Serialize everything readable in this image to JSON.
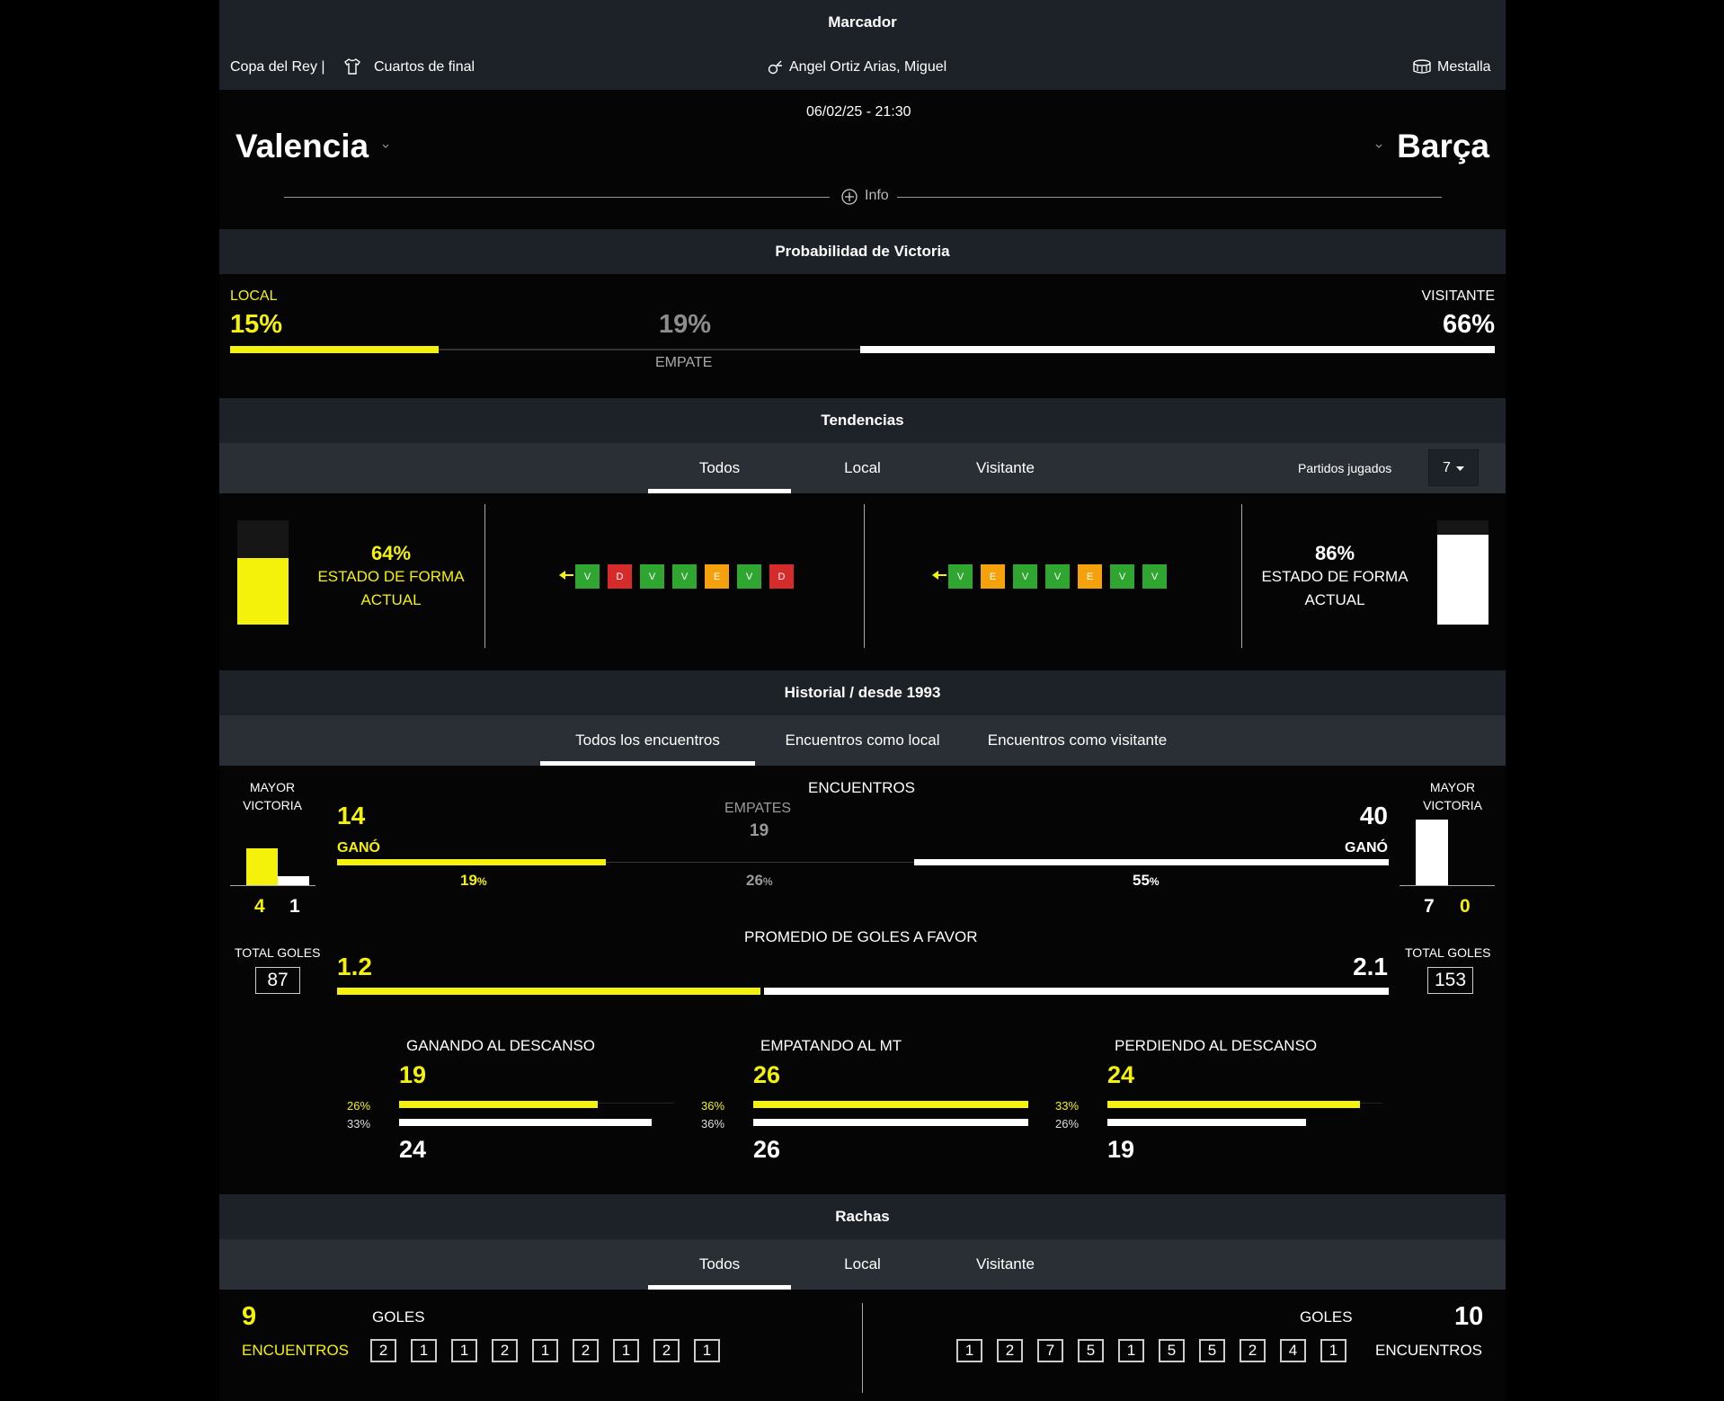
{
  "marcador": {
    "title": "Marcador",
    "competition": "Copa del Rey |",
    "round": "Cuartos de final",
    "referee": "Angel Ortiz Arias, Miguel",
    "stadium": "Mestalla",
    "datetime": "06/02/25 - 21:30",
    "home_team": "Valencia",
    "away_team": "Barça",
    "info_label": "Info"
  },
  "probabilidad": {
    "title": "Probabilidad de Victoria",
    "local_label": "LOCAL",
    "local_pct": "15%",
    "draw_pct": "19%",
    "draw_label": "EMPATE",
    "away_label": "VISITANTE",
    "away_pct": "66%",
    "local_value": 15,
    "draw_value": 19,
    "away_value": 66
  },
  "tendencias": {
    "title": "Tendencias",
    "tabs": [
      "Todos",
      "Local",
      "Visitante"
    ],
    "active_tab": 0,
    "partidos_label": "Partidos jugados",
    "partidos_value": "7",
    "home_form_pct": "64%",
    "home_form_value": 64,
    "home_form_label_1": "ESTADO DE FORMA",
    "home_form_label_2": "ACTUAL",
    "home_results": [
      "V",
      "D",
      "V",
      "V",
      "E",
      "V",
      "D"
    ],
    "away_results": [
      "V",
      "E",
      "V",
      "V",
      "E",
      "V",
      "V"
    ],
    "away_form_pct": "86%",
    "away_form_value": 86,
    "away_form_label_1": "ESTADO DE FORMA",
    "away_form_label_2": "ACTUAL"
  },
  "historial": {
    "title": "Historial / desde 1993",
    "tabs": [
      "Todos los encuentros",
      "Encuentros como local",
      "Encuentros como visitante"
    ],
    "mayor_victoria": "MAYOR",
    "mayor_victoria_2": "VICTORIA",
    "home_big_win": [
      "4",
      "1"
    ],
    "away_big_win": [
      "7",
      "0"
    ],
    "encuentros_label": "ENCUENTROS",
    "home_wins": "14",
    "home_wins_label": "GANÓ",
    "empates_label": "EMPATES",
    "empates": "19",
    "away_wins": "40",
    "away_wins_label": "GANÓ",
    "home_win_pct": "19",
    "draw_pct": "26",
    "away_win_pct": "55",
    "pct_sign": "%",
    "promedio_label": "PROMEDIO DE GOLES A FAVOR",
    "home_avg": "1.2",
    "away_avg": "2.1",
    "total_goles_label": "TOTAL GOLES",
    "home_total_goals": "87",
    "away_total_goals": "153",
    "descanso": [
      {
        "label": "GANANDO AL DESCANSO",
        "home": "19",
        "away": "24",
        "home_pct": "26%",
        "away_pct": "33%"
      },
      {
        "label": "EMPATANDO AL MT",
        "home": "26",
        "away": "26",
        "home_pct": "36%",
        "away_pct": "36%"
      },
      {
        "label": "PERDIENDO AL DESCANSO",
        "home": "24",
        "away": "19",
        "home_pct": "33%",
        "away_pct": "26%"
      }
    ]
  },
  "rachas": {
    "title": "Rachas",
    "tabs": [
      "Todos",
      "Local",
      "Visitante"
    ],
    "home_count": "9",
    "home_label": "ENCUENTROS",
    "home_goles_label": "GOLES",
    "home_goals": [
      "2",
      "1",
      "1",
      "2",
      "1",
      "2",
      "1",
      "2",
      "1"
    ],
    "away_count": "10",
    "away_label": "ENCUENTROS",
    "away_goles_label": "GOLES",
    "away_goals": [
      "1",
      "2",
      "7",
      "5",
      "1",
      "5",
      "5",
      "2",
      "4",
      "1"
    ]
  },
  "colors": {
    "accent": "#f4f10a",
    "win": "#2fa62f",
    "loss": "#d62b2b",
    "draw": "#f5a10c"
  }
}
